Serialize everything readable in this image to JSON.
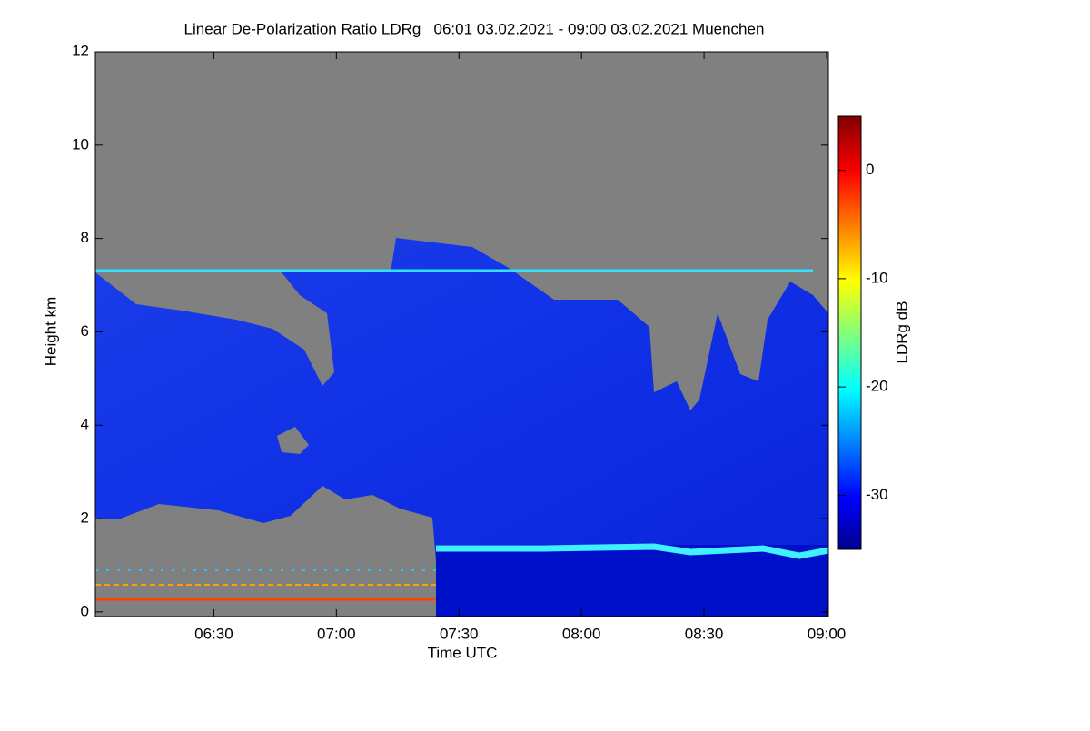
{
  "chart_data": {
    "type": "heatmap",
    "title": "Linear De-Polarization Ratio LDRg   06:01 03.02.2021 - 09:00 03.02.2021 Muenchen",
    "xlabel": "Time UTC",
    "ylabel": "Height km",
    "xlim": [
      6.0167,
      9.0
    ],
    "xticks": [
      {
        "value": 6.5,
        "label": "06:30"
      },
      {
        "value": 7.0,
        "label": "07:00"
      },
      {
        "value": 7.5,
        "label": "07:30"
      },
      {
        "value": 8.0,
        "label": "08:00"
      },
      {
        "value": 8.5,
        "label": "08:30"
      },
      {
        "value": 9.0,
        "label": "09:00"
      }
    ],
    "ylim": [
      -0.1,
      12
    ],
    "yticks": [
      0,
      2,
      4,
      6,
      8,
      10,
      12
    ],
    "colorbar_label": "LDRg dB",
    "clim": [
      -35,
      5
    ],
    "cticks": [
      -30,
      -20,
      -10,
      0
    ]
  }
}
